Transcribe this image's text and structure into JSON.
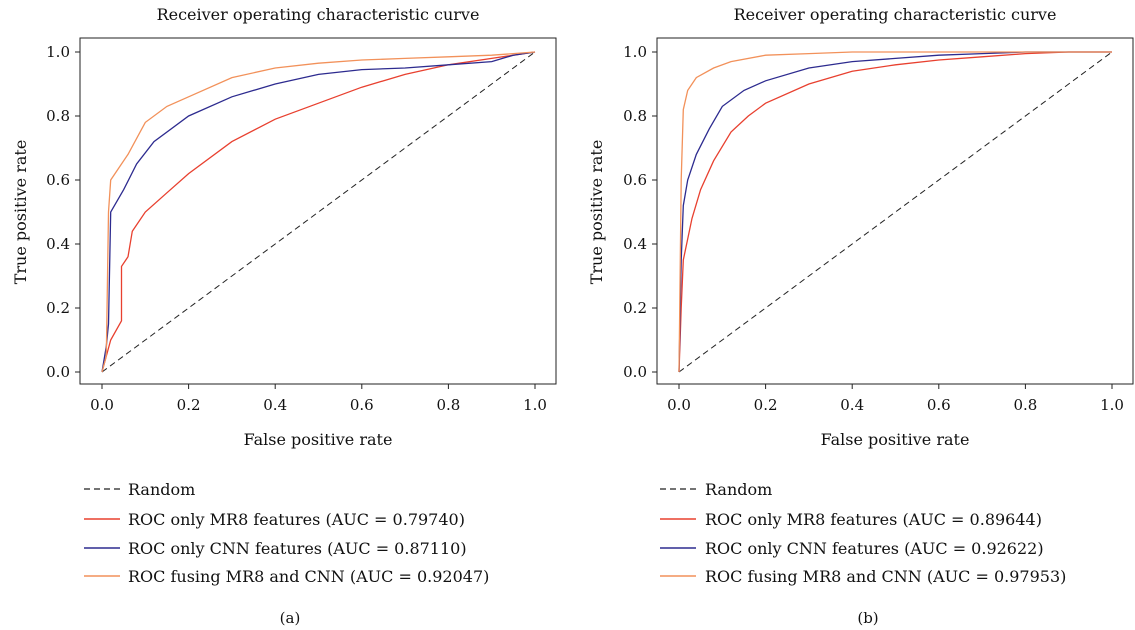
{
  "chart_data": [
    {
      "type": "line",
      "title": "Receiver operating characteristic curve",
      "xlabel": "False positive rate",
      "ylabel": "True positive rate",
      "xlim": [
        0.0,
        1.0
      ],
      "ylim": [
        0.0,
        1.0
      ],
      "xticks": [
        "0.0",
        "0.2",
        "0.4",
        "0.6",
        "0.8",
        "1.0"
      ],
      "yticks": [
        "0.0",
        "0.2",
        "0.4",
        "0.6",
        "0.8",
        "1.0"
      ],
      "grid": false,
      "legend_position": "below",
      "panel_label": "(a)",
      "series": [
        {
          "name": "Random",
          "color": "#222222",
          "dash": true,
          "points": [
            [
              0,
              0
            ],
            [
              1,
              1
            ]
          ]
        },
        {
          "name": "ROC only MR8 features (AUC = 0.79740)",
          "color": "#e8402f",
          "points": [
            [
              0,
              0
            ],
            [
              0.02,
              0.1
            ],
            [
              0.045,
              0.16
            ],
            [
              0.045,
              0.33
            ],
            [
              0.06,
              0.36
            ],
            [
              0.07,
              0.44
            ],
            [
              0.1,
              0.5
            ],
            [
              0.15,
              0.56
            ],
            [
              0.2,
              0.62
            ],
            [
              0.3,
              0.72
            ],
            [
              0.4,
              0.79
            ],
            [
              0.5,
              0.84
            ],
            [
              0.6,
              0.89
            ],
            [
              0.7,
              0.93
            ],
            [
              0.8,
              0.96
            ],
            [
              0.9,
              0.98
            ],
            [
              0.95,
              0.99
            ],
            [
              1,
              1
            ]
          ]
        },
        {
          "name": "ROC only CNN features (AUC = 0.87110)",
          "color": "#2d2b8f",
          "points": [
            [
              0,
              0
            ],
            [
              0.01,
              0.08
            ],
            [
              0.015,
              0.15
            ],
            [
              0.02,
              0.5
            ],
            [
              0.05,
              0.57
            ],
            [
              0.08,
              0.65
            ],
            [
              0.12,
              0.72
            ],
            [
              0.2,
              0.8
            ],
            [
              0.3,
              0.86
            ],
            [
              0.4,
              0.9
            ],
            [
              0.5,
              0.93
            ],
            [
              0.6,
              0.945
            ],
            [
              0.7,
              0.95
            ],
            [
              0.8,
              0.96
            ],
            [
              0.9,
              0.97
            ],
            [
              0.95,
              0.99
            ],
            [
              1,
              1
            ]
          ]
        },
        {
          "name": "ROC fusing MR8 and CNN (AUC = 0.92047)",
          "color": "#f2915a",
          "points": [
            [
              0,
              0
            ],
            [
              0.01,
              0.05
            ],
            [
              0.015,
              0.5
            ],
            [
              0.02,
              0.6
            ],
            [
              0.04,
              0.64
            ],
            [
              0.06,
              0.68
            ],
            [
              0.1,
              0.78
            ],
            [
              0.15,
              0.83
            ],
            [
              0.2,
              0.86
            ],
            [
              0.3,
              0.92
            ],
            [
              0.4,
              0.95
            ],
            [
              0.5,
              0.965
            ],
            [
              0.6,
              0.975
            ],
            [
              0.7,
              0.98
            ],
            [
              0.8,
              0.985
            ],
            [
              0.9,
              0.99
            ],
            [
              1,
              1
            ]
          ]
        }
      ]
    },
    {
      "type": "line",
      "title": "Receiver operating characteristic curve",
      "xlabel": "False positive rate",
      "ylabel": "True positive rate",
      "xlim": [
        0.0,
        1.0
      ],
      "ylim": [
        0.0,
        1.0
      ],
      "xticks": [
        "0.0",
        "0.2",
        "0.4",
        "0.6",
        "0.8",
        "1.0"
      ],
      "yticks": [
        "0.0",
        "0.2",
        "0.4",
        "0.6",
        "0.8",
        "1.0"
      ],
      "grid": false,
      "legend_position": "below",
      "panel_label": "(b)",
      "series": [
        {
          "name": "Random",
          "color": "#222222",
          "dash": true,
          "points": [
            [
              0,
              0
            ],
            [
              1,
              1
            ]
          ]
        },
        {
          "name": "ROC only MR8 features (AUC = 0.89644)",
          "color": "#e8402f",
          "points": [
            [
              0,
              0
            ],
            [
              0.005,
              0.2
            ],
            [
              0.01,
              0.35
            ],
            [
              0.03,
              0.48
            ],
            [
              0.05,
              0.57
            ],
            [
              0.08,
              0.66
            ],
            [
              0.12,
              0.75
            ],
            [
              0.16,
              0.8
            ],
            [
              0.2,
              0.84
            ],
            [
              0.3,
              0.9
            ],
            [
              0.4,
              0.94
            ],
            [
              0.5,
              0.96
            ],
            [
              0.6,
              0.975
            ],
            [
              0.7,
              0.985
            ],
            [
              0.8,
              0.995
            ],
            [
              0.9,
              1.0
            ],
            [
              1,
              1
            ]
          ]
        },
        {
          "name": "ROC only CNN features (AUC = 0.92622)",
          "color": "#2d2b8f",
          "points": [
            [
              0,
              0
            ],
            [
              0.005,
              0.35
            ],
            [
              0.01,
              0.52
            ],
            [
              0.02,
              0.6
            ],
            [
              0.04,
              0.68
            ],
            [
              0.07,
              0.76
            ],
            [
              0.1,
              0.83
            ],
            [
              0.15,
              0.88
            ],
            [
              0.2,
              0.91
            ],
            [
              0.3,
              0.95
            ],
            [
              0.4,
              0.97
            ],
            [
              0.5,
              0.98
            ],
            [
              0.6,
              0.99
            ],
            [
              0.7,
              0.995
            ],
            [
              0.8,
              1.0
            ],
            [
              1,
              1
            ]
          ]
        },
        {
          "name": "ROC fusing MR8 and CNN (AUC = 0.97953)",
          "color": "#f2915a",
          "points": [
            [
              0,
              0
            ],
            [
              0.005,
              0.6
            ],
            [
              0.01,
              0.82
            ],
            [
              0.02,
              0.88
            ],
            [
              0.04,
              0.92
            ],
            [
              0.08,
              0.95
            ],
            [
              0.12,
              0.97
            ],
            [
              0.2,
              0.99
            ],
            [
              0.3,
              0.995
            ],
            [
              0.4,
              1.0
            ],
            [
              1,
              1
            ]
          ]
        }
      ]
    }
  ]
}
